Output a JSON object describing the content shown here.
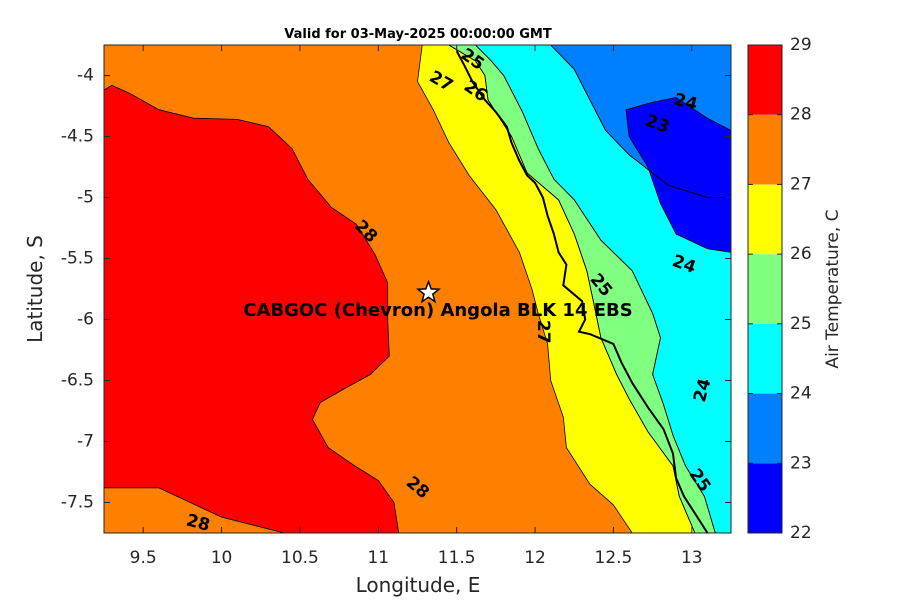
{
  "title": "Valid for 03-May-2025 00:00:00 GMT",
  "xlabel": "Longitude, E",
  "ylabel": "Latitude, S",
  "colorbar_label": "Air Temperature, C",
  "station_label": "CABGOC (Chevron)  Angola BLK 14  EBS",
  "station_marker": "star-icon",
  "chart_data": {
    "type": "heatmap",
    "variable": "Air Temperature",
    "units": "C",
    "xlim": [
      9.25,
      13.25
    ],
    "ylim": [
      -7.75,
      -3.75
    ],
    "x_ticks": [
      9.5,
      10,
      10.5,
      11,
      11.5,
      12,
      12.5,
      13
    ],
    "y_ticks": [
      -4,
      -4.5,
      -5,
      -5.5,
      -6,
      -6.5,
      -7,
      -7.5
    ],
    "x_tick_labels": [
      "9.5",
      "10",
      "10.5",
      "11",
      "11.5",
      "12",
      "12.5",
      "13"
    ],
    "y_tick_labels": [
      "-4",
      "-4.5",
      "-5",
      "-5.5",
      "-6",
      "-6.5",
      "-7",
      "-7.5"
    ],
    "color_levels": [
      22,
      23,
      24,
      25,
      26,
      27,
      28,
      29
    ],
    "color_level_labels": [
      "22",
      "23",
      "24",
      "25",
      "26",
      "27",
      "28",
      "29"
    ],
    "colors": [
      "#0000ff",
      "#0080ff",
      "#00ffff",
      "#80ff80",
      "#ffff00",
      "#ff8000",
      "#ff0000",
      "#800000"
    ],
    "station": {
      "lon": 11.32,
      "lat": -5.78
    },
    "regions": [
      {
        "level": 27,
        "fill": "#ff8000",
        "points": [
          [
            9.25,
            -3.75
          ],
          [
            13.25,
            -3.75
          ],
          [
            13.25,
            -7.75
          ],
          [
            9.25,
            -7.75
          ]
        ]
      },
      {
        "level": 28,
        "fill": "#ff0000",
        "points": [
          [
            9.25,
            -4.12
          ],
          [
            9.3,
            -4.08
          ],
          [
            9.42,
            -4.15
          ],
          [
            9.6,
            -4.28
          ],
          [
            9.82,
            -4.35
          ],
          [
            10.1,
            -4.36
          ],
          [
            10.3,
            -4.42
          ],
          [
            10.45,
            -4.6
          ],
          [
            10.55,
            -4.85
          ],
          [
            10.7,
            -5.08
          ],
          [
            10.86,
            -5.22
          ],
          [
            10.98,
            -5.47
          ],
          [
            11.06,
            -5.7
          ],
          [
            11.06,
            -6.0
          ],
          [
            11.07,
            -6.3
          ],
          [
            10.95,
            -6.45
          ],
          [
            10.78,
            -6.57
          ],
          [
            10.63,
            -6.68
          ],
          [
            10.58,
            -6.82
          ],
          [
            10.68,
            -7.05
          ],
          [
            10.85,
            -7.2
          ],
          [
            11.0,
            -7.32
          ],
          [
            11.1,
            -7.5
          ],
          [
            11.13,
            -7.75
          ],
          [
            10.4,
            -7.75
          ],
          [
            10.0,
            -7.62
          ],
          [
            9.8,
            -7.5
          ],
          [
            9.6,
            -7.38
          ],
          [
            9.25,
            -7.38
          ]
        ]
      },
      {
        "level": 26,
        "fill": "#ffff00",
        "points": [
          [
            11.28,
            -3.75
          ],
          [
            11.45,
            -3.75
          ],
          [
            11.62,
            -3.88
          ],
          [
            11.68,
            -4.0
          ],
          [
            11.7,
            -4.2
          ],
          [
            11.85,
            -4.5
          ],
          [
            11.95,
            -4.8
          ],
          [
            12.15,
            -5.02
          ],
          [
            12.25,
            -5.3
          ],
          [
            12.33,
            -5.6
          ],
          [
            12.38,
            -5.9
          ],
          [
            12.42,
            -6.15
          ],
          [
            12.52,
            -6.45
          ],
          [
            12.6,
            -6.65
          ],
          [
            12.72,
            -6.92
          ],
          [
            12.88,
            -7.2
          ],
          [
            12.92,
            -7.45
          ],
          [
            13.02,
            -7.75
          ],
          [
            12.62,
            -7.75
          ],
          [
            12.5,
            -7.52
          ],
          [
            12.35,
            -7.35
          ],
          [
            12.2,
            -7.05
          ],
          [
            12.18,
            -6.8
          ],
          [
            12.1,
            -6.5
          ],
          [
            12.08,
            -6.2
          ],
          [
            12.02,
            -5.95
          ],
          [
            11.98,
            -5.75
          ],
          [
            11.9,
            -5.45
          ],
          [
            11.75,
            -5.1
          ],
          [
            11.58,
            -4.82
          ],
          [
            11.45,
            -4.55
          ],
          [
            11.35,
            -4.28
          ],
          [
            11.25,
            -4.05
          ],
          [
            11.28,
            -3.75
          ]
        ]
      },
      {
        "level": 25,
        "fill": "#80ff80",
        "points": [
          [
            11.45,
            -3.75
          ],
          [
            11.62,
            -3.75
          ],
          [
            11.72,
            -3.88
          ],
          [
            11.8,
            -4.0
          ],
          [
            11.92,
            -4.3
          ],
          [
            12.02,
            -4.6
          ],
          [
            12.12,
            -4.85
          ],
          [
            12.25,
            -5.02
          ],
          [
            12.42,
            -5.35
          ],
          [
            12.62,
            -5.6
          ],
          [
            12.75,
            -5.95
          ],
          [
            12.8,
            -6.15
          ],
          [
            12.75,
            -6.45
          ],
          [
            12.82,
            -6.7
          ],
          [
            12.88,
            -6.95
          ],
          [
            12.96,
            -7.2
          ],
          [
            13.08,
            -7.45
          ],
          [
            13.15,
            -7.75
          ],
          [
            13.02,
            -7.75
          ],
          [
            12.92,
            -7.45
          ],
          [
            12.88,
            -7.2
          ],
          [
            12.72,
            -6.92
          ],
          [
            12.6,
            -6.65
          ],
          [
            12.52,
            -6.45
          ],
          [
            12.42,
            -6.15
          ],
          [
            12.38,
            -5.9
          ],
          [
            12.33,
            -5.6
          ],
          [
            12.25,
            -5.3
          ],
          [
            12.15,
            -5.02
          ],
          [
            11.95,
            -4.8
          ],
          [
            11.85,
            -4.5
          ],
          [
            11.7,
            -4.2
          ],
          [
            11.68,
            -4.0
          ],
          [
            11.62,
            -3.88
          ],
          [
            11.45,
            -3.75
          ]
        ]
      },
      {
        "level": 24,
        "fill": "#00ffff",
        "points": [
          [
            11.62,
            -3.75
          ],
          [
            12.1,
            -3.75
          ],
          [
            12.25,
            -3.95
          ],
          [
            12.35,
            -4.2
          ],
          [
            12.45,
            -4.45
          ],
          [
            12.6,
            -4.65
          ],
          [
            12.85,
            -4.9
          ],
          [
            13.1,
            -5.0
          ],
          [
            13.25,
            -5.0
          ],
          [
            13.25,
            -7.75
          ],
          [
            13.15,
            -7.75
          ],
          [
            13.08,
            -7.45
          ],
          [
            12.96,
            -7.2
          ],
          [
            12.88,
            -6.95
          ],
          [
            12.82,
            -6.7
          ],
          [
            12.75,
            -6.45
          ],
          [
            12.8,
            -6.15
          ],
          [
            12.75,
            -5.95
          ],
          [
            12.62,
            -5.6
          ],
          [
            12.42,
            -5.35
          ],
          [
            12.25,
            -5.02
          ],
          [
            12.12,
            -4.85
          ],
          [
            12.02,
            -4.6
          ],
          [
            11.92,
            -4.3
          ],
          [
            11.8,
            -4.0
          ],
          [
            11.72,
            -3.88
          ],
          [
            11.62,
            -3.75
          ]
        ]
      },
      {
        "level": 23,
        "fill": "#0080ff",
        "points": [
          [
            12.1,
            -3.75
          ],
          [
            13.25,
            -3.75
          ],
          [
            13.25,
            -5.0
          ],
          [
            13.1,
            -5.0
          ],
          [
            12.85,
            -4.9
          ],
          [
            12.6,
            -4.65
          ],
          [
            12.45,
            -4.45
          ],
          [
            12.35,
            -4.2
          ],
          [
            12.25,
            -3.95
          ],
          [
            12.1,
            -3.75
          ]
        ]
      },
      {
        "level": 22,
        "fill": "#0000ff",
        "points": [
          [
            12.58,
            -4.28
          ],
          [
            12.75,
            -4.22
          ],
          [
            12.9,
            -4.18
          ],
          [
            13.1,
            -4.35
          ],
          [
            13.25,
            -4.45
          ],
          [
            13.25,
            -5.45
          ],
          [
            13.1,
            -5.42
          ],
          [
            12.9,
            -5.3
          ],
          [
            12.8,
            -5.05
          ],
          [
            12.72,
            -4.75
          ],
          [
            12.6,
            -4.5
          ]
        ]
      }
    ],
    "contour_labels": [
      {
        "text": "25",
        "lon": 11.6,
        "lat": -3.87,
        "angle": 35
      },
      {
        "text": "27",
        "lon": 11.4,
        "lat": -4.05,
        "angle": 30
      },
      {
        "text": "26",
        "lon": 11.62,
        "lat": -4.13,
        "angle": 35
      },
      {
        "text": "24",
        "lon": 12.96,
        "lat": -4.22,
        "angle": 15
      },
      {
        "text": "23",
        "lon": 12.78,
        "lat": -4.4,
        "angle": 20
      },
      {
        "text": "28",
        "lon": 10.92,
        "lat": -5.28,
        "angle": 45
      },
      {
        "text": "24",
        "lon": 12.95,
        "lat": -5.55,
        "angle": 20
      },
      {
        "text": "25",
        "lon": 12.42,
        "lat": -5.72,
        "angle": 50
      },
      {
        "text": "27",
        "lon": 12.05,
        "lat": -6.1,
        "angle": 90
      },
      {
        "text": "24",
        "lon": 13.07,
        "lat": -6.58,
        "angle": -75
      },
      {
        "text": "28",
        "lon": 11.25,
        "lat": -7.38,
        "angle": 40
      },
      {
        "text": "28",
        "lon": 9.85,
        "lat": -7.67,
        "angle": 15
      },
      {
        "text": "25",
        "lon": 13.05,
        "lat": -7.32,
        "angle": 55
      }
    ],
    "coastline": [
      [
        11.5,
        -3.8
      ],
      [
        11.55,
        -3.92
      ],
      [
        11.6,
        -4.05
      ],
      [
        11.68,
        -4.2
      ],
      [
        11.75,
        -4.3
      ],
      [
        11.82,
        -4.42
      ],
      [
        11.85,
        -4.55
      ],
      [
        11.9,
        -4.7
      ],
      [
        11.95,
        -4.82
      ],
      [
        12.0,
        -4.88
      ],
      [
        12.05,
        -5.0
      ],
      [
        12.08,
        -5.15
      ],
      [
        12.12,
        -5.3
      ],
      [
        12.15,
        -5.45
      ],
      [
        12.2,
        -5.55
      ],
      [
        12.18,
        -5.72
      ],
      [
        12.3,
        -5.85
      ],
      [
        12.32,
        -6.0
      ],
      [
        12.28,
        -6.1
      ],
      [
        12.35,
        -6.12
      ],
      [
        12.5,
        -6.2
      ],
      [
        12.55,
        -6.35
      ],
      [
        12.62,
        -6.52
      ],
      [
        12.72,
        -6.72
      ],
      [
        12.82,
        -6.9
      ],
      [
        12.88,
        -7.1
      ],
      [
        12.9,
        -7.3
      ],
      [
        12.95,
        -7.45
      ],
      [
        13.05,
        -7.65
      ],
      [
        13.1,
        -7.75
      ]
    ]
  }
}
